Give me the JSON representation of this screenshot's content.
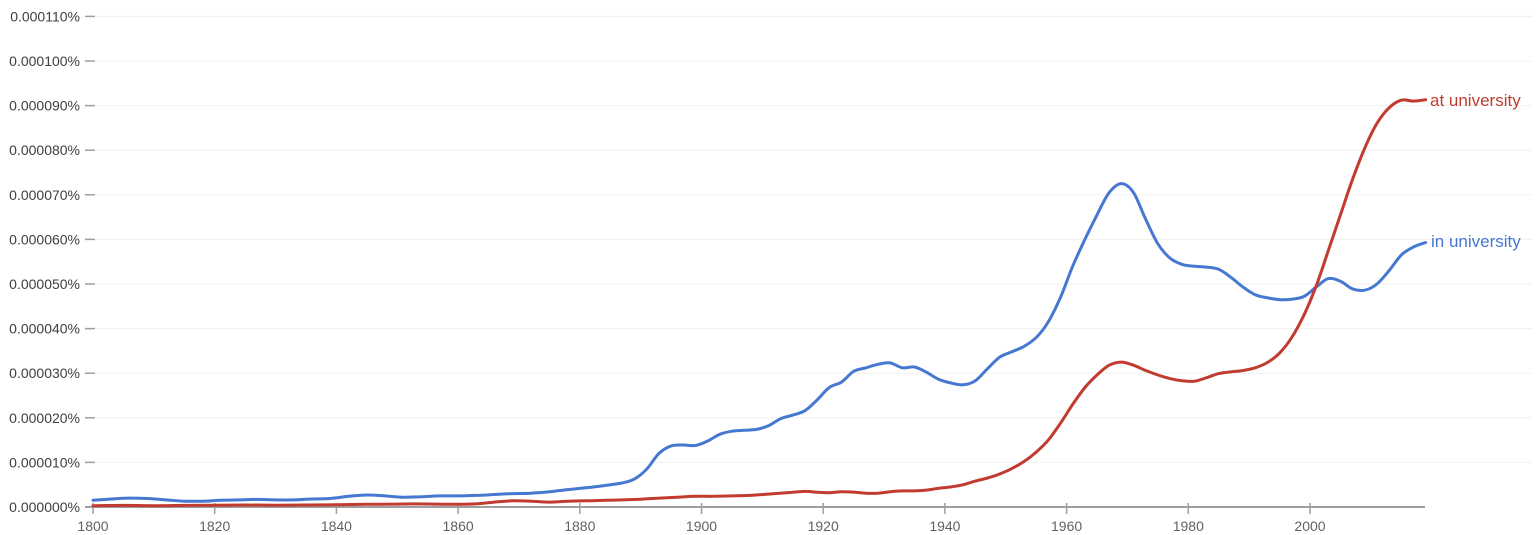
{
  "chart_data": {
    "type": "line",
    "title": "",
    "xlabel": "",
    "ylabel": "",
    "grid": true,
    "legend_position": "line-end-labels",
    "value_unit": "1e-6 percent of corpus (ngram frequency)",
    "xlim": [
      1800,
      2019
    ],
    "ylim_units": [
      0,
      115
    ],
    "x_axis": {
      "ticks": [
        1800,
        1820,
        1840,
        1860,
        1880,
        1900,
        1920,
        1940,
        1960,
        1980,
        2000
      ]
    },
    "y_axis": {
      "ticks": [
        {
          "label": "0.000000%",
          "value": 0
        },
        {
          "label": "0.000010%",
          "value": 10
        },
        {
          "label": "0.000020%",
          "value": 20
        },
        {
          "label": "0.000030%",
          "value": 30
        },
        {
          "label": "0.000040%",
          "value": 40
        },
        {
          "label": "0.000050%",
          "value": 50
        },
        {
          "label": "0.000060%",
          "value": 60
        },
        {
          "label": "0.000070%",
          "value": 70
        },
        {
          "label": "0.000080%",
          "value": 80
        },
        {
          "label": "0.000090%",
          "value": 90
        },
        {
          "label": "0.000100%",
          "value": 100
        },
        {
          "label": "0.000110%",
          "value": 110
        }
      ]
    },
    "style": {
      "grid_color": "#f1f1f1",
      "axis_color": "#9e9e9e",
      "y_label_color": "#3c4043",
      "x_label_color": "#5f6368",
      "background": "#ffffff"
    },
    "series": [
      {
        "name": "at university",
        "color": "#c23b30",
        "points": [
          [
            1800,
            0.3
          ],
          [
            1805,
            0.35
          ],
          [
            1810,
            0.3
          ],
          [
            1815,
            0.35
          ],
          [
            1820,
            0.4
          ],
          [
            1825,
            0.45
          ],
          [
            1830,
            0.4
          ],
          [
            1835,
            0.45
          ],
          [
            1840,
            0.5
          ],
          [
            1845,
            0.6
          ],
          [
            1850,
            0.65
          ],
          [
            1853,
            0.7
          ],
          [
            1856,
            0.65
          ],
          [
            1860,
            0.6
          ],
          [
            1863,
            0.7
          ],
          [
            1866,
            1.1
          ],
          [
            1869,
            1.4
          ],
          [
            1872,
            1.3
          ],
          [
            1875,
            1.1
          ],
          [
            1878,
            1.3
          ],
          [
            1881,
            1.4
          ],
          [
            1884,
            1.5
          ],
          [
            1887,
            1.6
          ],
          [
            1890,
            1.75
          ],
          [
            1893,
            2.0
          ],
          [
            1896,
            2.2
          ],
          [
            1899,
            2.4
          ],
          [
            1902,
            2.4
          ],
          [
            1905,
            2.5
          ],
          [
            1908,
            2.6
          ],
          [
            1911,
            2.9
          ],
          [
            1914,
            3.2
          ],
          [
            1917,
            3.5
          ],
          [
            1919,
            3.3
          ],
          [
            1921,
            3.2
          ],
          [
            1923,
            3.4
          ],
          [
            1925,
            3.35
          ],
          [
            1927,
            3.1
          ],
          [
            1929,
            3.1
          ],
          [
            1931,
            3.4
          ],
          [
            1933,
            3.6
          ],
          [
            1935,
            3.6
          ],
          [
            1937,
            3.8
          ],
          [
            1939,
            4.2
          ],
          [
            1941,
            4.5
          ],
          [
            1943,
            5.0
          ],
          [
            1945,
            5.8
          ],
          [
            1947,
            6.5
          ],
          [
            1949,
            7.4
          ],
          [
            1951,
            8.6
          ],
          [
            1953,
            10.2
          ],
          [
            1955,
            12.3
          ],
          [
            1957,
            15.0
          ],
          [
            1959,
            18.8
          ],
          [
            1961,
            23.0
          ],
          [
            1963,
            26.8
          ],
          [
            1965,
            29.6
          ],
          [
            1967,
            31.8
          ],
          [
            1969,
            32.5
          ],
          [
            1971,
            31.8
          ],
          [
            1973,
            30.6
          ],
          [
            1975,
            29.6
          ],
          [
            1977,
            28.8
          ],
          [
            1979,
            28.3
          ],
          [
            1981,
            28.2
          ],
          [
            1983,
            29.0
          ],
          [
            1985,
            29.9
          ],
          [
            1987,
            30.3
          ],
          [
            1989,
            30.6
          ],
          [
            1991,
            31.2
          ],
          [
            1993,
            32.4
          ],
          [
            1995,
            34.5
          ],
          [
            1997,
            38.0
          ],
          [
            1999,
            43.0
          ],
          [
            2001,
            49.5
          ],
          [
            2003,
            57.5
          ],
          [
            2005,
            65.5
          ],
          [
            2007,
            73.5
          ],
          [
            2009,
            80.5
          ],
          [
            2011,
            86.0
          ],
          [
            2013,
            89.5
          ],
          [
            2015,
            91.2
          ],
          [
            2017,
            91.0
          ],
          [
            2019,
            91.3
          ]
        ]
      },
      {
        "name": "in university",
        "color": "#4678d2",
        "points": [
          [
            1800,
            1.5
          ],
          [
            1803,
            1.8
          ],
          [
            1806,
            2.0
          ],
          [
            1809,
            1.9
          ],
          [
            1812,
            1.6
          ],
          [
            1815,
            1.3
          ],
          [
            1818,
            1.3
          ],
          [
            1821,
            1.5
          ],
          [
            1824,
            1.6
          ],
          [
            1827,
            1.7
          ],
          [
            1830,
            1.6
          ],
          [
            1833,
            1.6
          ],
          [
            1836,
            1.8
          ],
          [
            1839,
            1.9
          ],
          [
            1842,
            2.4
          ],
          [
            1845,
            2.7
          ],
          [
            1848,
            2.5
          ],
          [
            1851,
            2.2
          ],
          [
            1854,
            2.3
          ],
          [
            1857,
            2.5
          ],
          [
            1860,
            2.5
          ],
          [
            1863,
            2.6
          ],
          [
            1866,
            2.8
          ],
          [
            1869,
            3.0
          ],
          [
            1872,
            3.1
          ],
          [
            1875,
            3.4
          ],
          [
            1878,
            3.9
          ],
          [
            1881,
            4.3
          ],
          [
            1884,
            4.8
          ],
          [
            1887,
            5.4
          ],
          [
            1889,
            6.3
          ],
          [
            1891,
            8.5
          ],
          [
            1893,
            12.0
          ],
          [
            1895,
            13.7
          ],
          [
            1897,
            13.9
          ],
          [
            1899,
            13.8
          ],
          [
            1901,
            14.8
          ],
          [
            1903,
            16.3
          ],
          [
            1905,
            17.0
          ],
          [
            1907,
            17.2
          ],
          [
            1909,
            17.4
          ],
          [
            1911,
            18.2
          ],
          [
            1913,
            19.8
          ],
          [
            1915,
            20.6
          ],
          [
            1917,
            21.6
          ],
          [
            1919,
            24.0
          ],
          [
            1921,
            26.8
          ],
          [
            1923,
            28.0
          ],
          [
            1925,
            30.4
          ],
          [
            1927,
            31.2
          ],
          [
            1929,
            32.0
          ],
          [
            1931,
            32.3
          ],
          [
            1933,
            31.2
          ],
          [
            1935,
            31.4
          ],
          [
            1937,
            30.2
          ],
          [
            1939,
            28.6
          ],
          [
            1941,
            27.8
          ],
          [
            1943,
            27.4
          ],
          [
            1945,
            28.3
          ],
          [
            1947,
            31.0
          ],
          [
            1949,
            33.6
          ],
          [
            1951,
            34.8
          ],
          [
            1953,
            36.0
          ],
          [
            1955,
            38.0
          ],
          [
            1957,
            41.5
          ],
          [
            1959,
            47.0
          ],
          [
            1961,
            54.0
          ],
          [
            1963,
            60.0
          ],
          [
            1965,
            65.5
          ],
          [
            1967,
            70.5
          ],
          [
            1969,
            72.5
          ],
          [
            1971,
            70.5
          ],
          [
            1973,
            64.5
          ],
          [
            1975,
            59.0
          ],
          [
            1977,
            55.8
          ],
          [
            1979,
            54.4
          ],
          [
            1981,
            54.0
          ],
          [
            1983,
            53.8
          ],
          [
            1985,
            53.3
          ],
          [
            1987,
            51.5
          ],
          [
            1989,
            49.3
          ],
          [
            1991,
            47.6
          ],
          [
            1993,
            46.9
          ],
          [
            1995,
            46.5
          ],
          [
            1997,
            46.6
          ],
          [
            1999,
            47.2
          ],
          [
            2001,
            49.3
          ],
          [
            2003,
            51.2
          ],
          [
            2005,
            50.6
          ],
          [
            2007,
            48.9
          ],
          [
            2009,
            48.6
          ],
          [
            2011,
            50.0
          ],
          [
            2013,
            53.0
          ],
          [
            2015,
            56.5
          ],
          [
            2017,
            58.3
          ],
          [
            2019,
            59.3
          ]
        ]
      }
    ]
  }
}
